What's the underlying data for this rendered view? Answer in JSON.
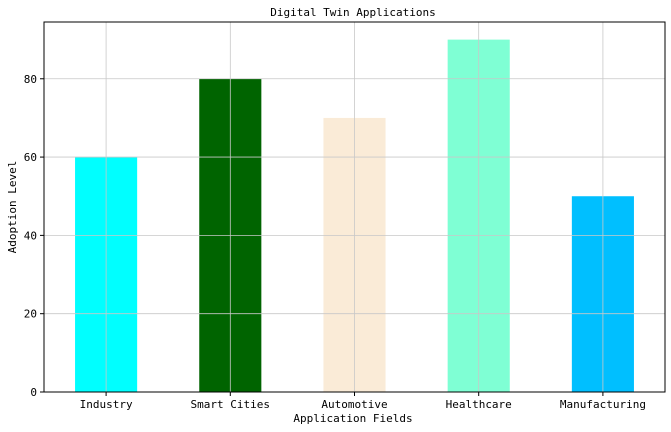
{
  "chart_data": {
    "type": "bar",
    "title": "Digital Twin Applications",
    "xlabel": "Application Fields",
    "ylabel": "Adoption Level",
    "categories": [
      "Industry",
      "Smart Cities",
      "Automotive",
      "Healthcare",
      "Manufacturing"
    ],
    "values": [
      60,
      80,
      70,
      90,
      50
    ],
    "colors": [
      "#00ffff",
      "#006400",
      "#faebd7",
      "#7fffd4",
      "#00bfff"
    ],
    "ylim": [
      0,
      94.5
    ],
    "yticks": [
      0,
      20,
      40,
      60,
      80
    ],
    "grid": true,
    "legend": "none"
  }
}
